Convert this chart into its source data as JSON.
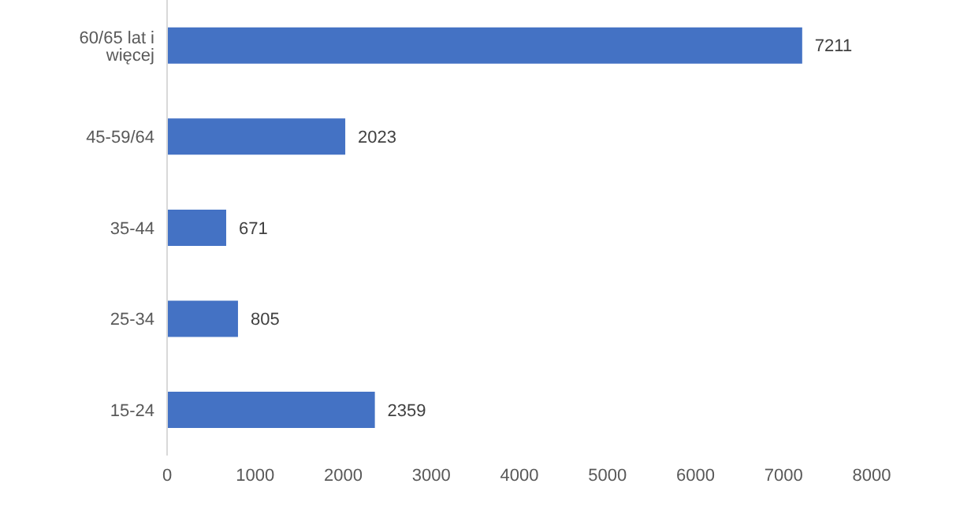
{
  "chart_data": {
    "type": "bar",
    "orientation": "horizontal",
    "categories": [
      "60/65 lat i więcej",
      "45-59/64",
      "35-44",
      "25-34",
      "15-24"
    ],
    "values": [
      7211,
      2023,
      671,
      805,
      2359
    ],
    "color": "#4472c4",
    "xlim": [
      0,
      8000
    ],
    "xticks": [
      0,
      1000,
      2000,
      3000,
      4000,
      5000,
      6000,
      7000,
      8000
    ],
    "data_labels": true,
    "grid": false,
    "legend": false
  }
}
